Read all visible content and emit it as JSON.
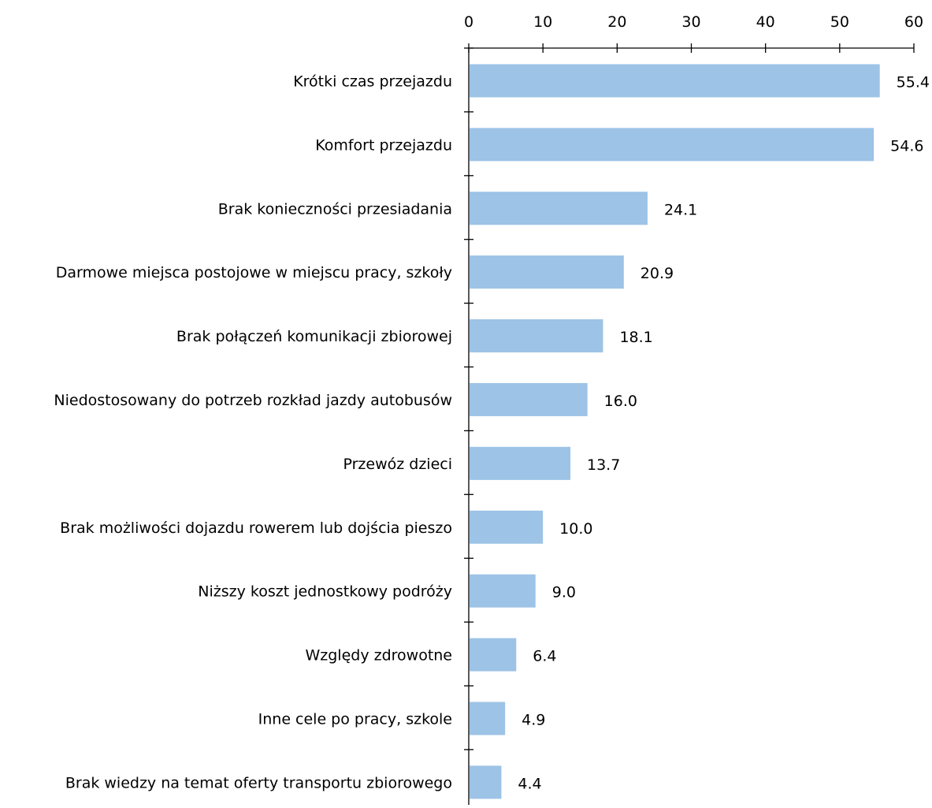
{
  "chart_data": {
    "type": "bar",
    "orientation": "horizontal",
    "categories": [
      "Krótki czas przejazdu",
      "Komfort przejazdu",
      "Brak konieczności przesiadania",
      "Darmowe miejsca postojowe w miejscu pracy, szkoły",
      "Brak połączeń komunikacji zbiorowej",
      "Niedostosowany do potrzeb rozkład jazdy autobusów",
      "Przewóz dzieci",
      "Brak możliwości dojazdu rowerem lub dojścia pieszo",
      "Niższy koszt jednostkowy podróży",
      "Względy zdrowotne",
      "Inne cele po pracy, szkole",
      "Brak wiedzy na temat oferty transportu zbiorowego"
    ],
    "values": [
      55.4,
      54.6,
      24.1,
      20.9,
      18.1,
      16.0,
      13.7,
      10.0,
      9.0,
      6.4,
      4.9,
      4.4
    ],
    "value_labels": [
      "55.4",
      "54.6",
      "24.1",
      "20.9",
      "18.1",
      "16.0",
      "13.7",
      "10.0",
      "9.0",
      "6.4",
      "4.9",
      "4.4"
    ],
    "xlim": [
      0,
      60
    ],
    "xticks": [
      0,
      10,
      20,
      30,
      40,
      50,
      60
    ],
    "axis_position": "top",
    "grid": false,
    "legend": "none",
    "bar_color": "#9dc3e6"
  }
}
